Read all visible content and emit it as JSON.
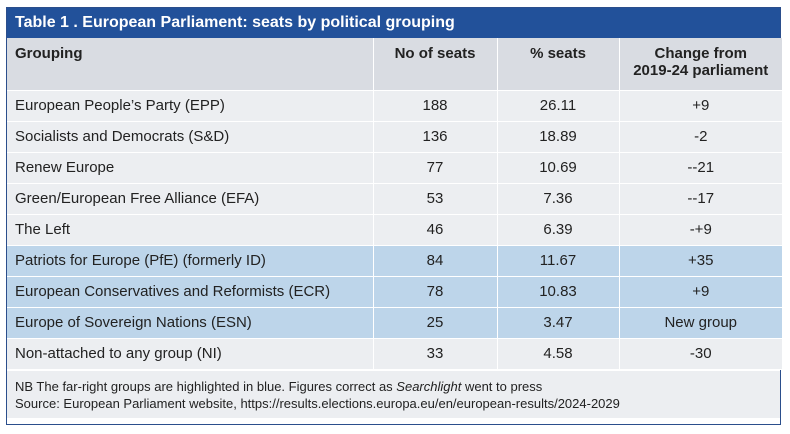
{
  "table": {
    "title": "Table 1 . European Parliament: seats by political grouping",
    "headers": {
      "grouping": "Grouping",
      "seats": "No of seats",
      "pct": "% seats",
      "change_line1": "Change from",
      "change_line2": "2019-24 parliament"
    },
    "rows": [
      {
        "grouping": "European People’s Party (EPP)",
        "seats": "188",
        "pct": "26.11",
        "change": "+9"
      },
      {
        "grouping": "Socialists and Democrats (S&D)",
        "seats": "136",
        "pct": "18.89",
        "change": "-2"
      },
      {
        "grouping": "Renew Europe",
        "seats": "77",
        "pct": "10.69",
        "change": "--21"
      },
      {
        "grouping": "Green/European Free Alliance (EFA)",
        "seats": "53",
        "pct": "7.36",
        "change": "--17"
      },
      {
        "grouping": "The Left",
        "seats": "46",
        "pct": "6.39",
        "change": "-+9"
      },
      {
        "grouping": "Patriots for Europe (PfE) (formerly ID)",
        "seats": "84",
        "pct": "11.67",
        "change": "+35"
      },
      {
        "grouping": "European Conservatives and Reformists (ECR)",
        "seats": "78",
        "pct": "10.83",
        "change": "+9"
      },
      {
        "grouping": "Europe of Sovereign Nations (ESN)",
        "seats": "25",
        "pct": "3.47",
        "change": "New group"
      },
      {
        "grouping": "Non-attached to any group (NI)",
        "seats": "33",
        "pct": "4.58",
        "change": "-30"
      }
    ],
    "highlight_color": "#bdd5ea",
    "title_color": "#22519a",
    "note_prefix": "NB The far-right groups are highlighted in blue. Figures correct as ",
    "note_italic": "Searchlight",
    "note_suffix": " went to press",
    "source": "Source: European Parliament website, https://results.elections.europa.eu/en/european-results/2024-2029"
  }
}
